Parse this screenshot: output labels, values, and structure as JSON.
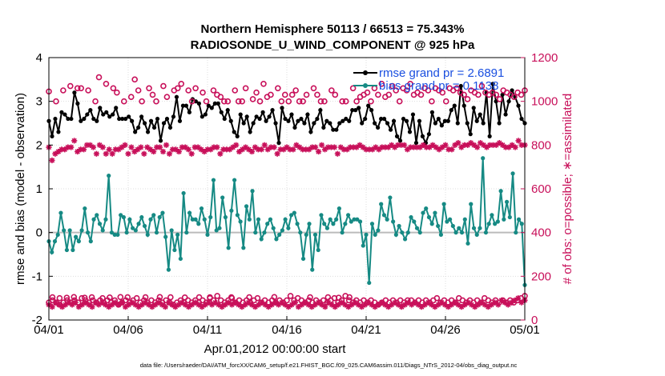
{
  "chart_data": {
    "type": "line",
    "title": "Northern Hemisphere 50113 / 66513 = 75.343%",
    "subtitle": "RADIOSONDE_U_WIND_COMPONENT @ 925 hPa",
    "xlabel": "Apr.01,2012 00:00:00 start",
    "ylabel_left": "rmse and bias (model - observation)",
    "ylabel_right": "# of obs: o=possible; ∗=assimilated",
    "x_range": [
      0,
      30
    ],
    "ylim_left": [
      -2,
      4
    ],
    "ylim_right": [
      0,
      1200
    ],
    "x_ticks": [
      {
        "x": 0,
        "label": "04/01"
      },
      {
        "x": 5,
        "label": "04/06"
      },
      {
        "x": 10,
        "label": "04/11"
      },
      {
        "x": 15,
        "label": "04/16"
      },
      {
        "x": 20,
        "label": "04/21"
      },
      {
        "x": 25,
        "label": "04/26"
      },
      {
        "x": 30,
        "label": "05/01"
      }
    ],
    "y_ticks_left": [
      "-2",
      "-1",
      "0",
      "1",
      "2",
      "3",
      "4"
    ],
    "y_ticks_right": [
      "0",
      "200",
      "400",
      "600",
      "800",
      "1000",
      "1200"
    ],
    "legend": [
      "rmse grand pr = 2.6891",
      "bias grand pr = 0.1138"
    ],
    "footnote": "data file: /Users/raeder/DAI/ATM_forcXX/CAM6_setup/f.e21.FHIST_BGC.f09_025.CAM6assim.011/Diags_NTrS_2012-04/obs_diag_output.nc",
    "x_step": 0.25,
    "series": [
      {
        "name": "rmse",
        "axis": "left",
        "color": "#000000",
        "marker": "dot",
        "values": [
          2.55,
          2.2,
          2.6,
          2.3,
          2.75,
          2.7,
          2.6,
          2.6,
          3.2,
          2.95,
          2.55,
          2.6,
          2.7,
          2.8,
          2.6,
          2.55,
          2.85,
          2.7,
          2.75,
          2.65,
          2.7,
          2.85,
          2.6,
          2.6,
          2.6,
          2.65,
          2.55,
          2.3,
          2.4,
          2.65,
          2.5,
          2.3,
          2.55,
          2.4,
          2.6,
          2.1,
          2.5,
          2.6,
          2.4,
          2.65,
          3.1,
          2.55,
          2.9,
          2.9,
          2.75,
          3.05,
          3.0,
          2.95,
          2.65,
          2.7,
          2.9,
          2.85,
          2.95,
          2.95,
          2.75,
          2.6,
          2.8,
          2.55,
          2.3,
          2.2,
          2.7,
          2.5,
          2.65,
          2.3,
          2.5,
          2.65,
          2.6,
          2.75,
          2.55,
          2.65,
          2.8,
          2.5,
          2.05,
          2.85,
          2.6,
          2.55,
          2.7,
          2.4,
          2.55,
          2.6,
          2.5,
          2.7,
          2.3,
          2.5,
          2.6,
          2.8,
          2.4,
          2.55,
          2.5,
          2.35,
          2.35,
          2.5,
          2.55,
          2.6,
          2.55,
          2.8,
          2.8,
          2.85,
          2.5,
          2.6,
          2.9,
          2.8,
          2.5,
          2.4,
          2.6,
          2.6,
          2.5,
          2.35,
          2.55,
          2.2,
          2.1,
          2.6,
          2.55,
          2.3,
          2.7,
          2.05,
          2.55,
          2.2,
          2.05,
          2.25,
          2.75,
          2.5,
          2.6,
          2.45,
          2.55,
          2.55,
          2.8,
          2.9,
          2.5,
          3.35,
          2.9,
          2.5,
          2.25,
          2.85,
          2.55,
          2.7,
          2.5,
          3.2,
          2.2,
          3.4,
          3.0,
          2.5,
          3.15,
          2.7,
          3.0,
          3.25,
          3.1,
          2.9,
          2.6,
          2.5
        ]
      },
      {
        "name": "bias",
        "axis": "left",
        "color": "#168a84",
        "marker": "dot",
        "values": [
          -0.2,
          -0.45,
          -0.2,
          -0.05,
          0.45,
          0.05,
          -0.4,
          0.05,
          -0.4,
          -0.1,
          -0.2,
          0.05,
          0.55,
          0.0,
          -0.2,
          0.3,
          0.4,
          0.2,
          0.05,
          0.3,
          1.3,
          0.0,
          -0.05,
          -0.05,
          0.4,
          0.35,
          0.0,
          0.3,
          0.1,
          0.05,
          0.2,
          0.35,
          0.15,
          -0.05,
          0.3,
          0.4,
          0.0,
          0.35,
          0.45,
          -0.1,
          -0.85,
          0.05,
          -0.4,
          -0.05,
          -0.6,
          0.9,
          0.0,
          0.45,
          0.3,
          0.3,
          0.2,
          0.55,
          0.3,
          -0.05,
          0.35,
          1.2,
          0.05,
          0.1,
          0.8,
          0.35,
          -0.35,
          0.5,
          1.2,
          0.4,
          0.25,
          -0.35,
          0.6,
          0.3,
          0.95,
          0.0,
          0.3,
          -0.15,
          0.0,
          0.2,
          0.3,
          0.1,
          -0.15,
          -0.05,
          0.05,
          0.3,
          0.1,
          0.4,
          0.45,
          0.2,
          0.0,
          -0.6,
          -0.05,
          0.2,
          -0.85,
          -0.05,
          -0.4,
          0.4,
          0.2,
          0.1,
          0.3,
          0.2,
          0.3,
          0.55,
          0.0,
          0.2,
          0.4,
          0.25,
          0.3,
          0.3,
          0.25,
          -0.3,
          -0.05,
          -1.15,
          0.2,
          -0.05,
          0.05,
          0.65,
          0.4,
          0.3,
          0.8,
          0.25,
          -0.05,
          0.15,
          0.0,
          -0.15,
          0.0,
          0.35,
          0.25,
          0.1,
          0.0,
          0.45,
          0.55,
          0.35,
          0.2,
          0.45,
          0.15,
          -0.05,
          0.65,
          0.25,
          0.3,
          0.15,
          0.0,
          0.1,
          0.0,
          0.3,
          -0.25,
          0.65,
          0.1,
          -0.05,
          0.1,
          1.7,
          0.0,
          0.2,
          0.4,
          0.2,
          0.25,
          0.95,
          0.3,
          0.7,
          0.35,
          1.35,
          0.0,
          0.3,
          0.2,
          -1.2
        ]
      },
      {
        "name": "obs possible",
        "axis": "right",
        "color": "#c8105a",
        "marker": "circle",
        "values": [
          1045,
          104,
          1000,
          100,
          1050,
          102,
          1070,
          105,
          1060,
          1060,
          102,
          1050,
          104,
          1000,
          1110,
          100,
          1080,
          103,
          1060,
          1040,
          105,
          1000,
          104,
          1020,
          1100,
          1050,
          1000,
          104,
          1060,
          1030,
          1000,
          105,
          1070,
          1020,
          104,
          1050,
          1060,
          1080,
          103,
          1050,
          1000,
          1060,
          104,
          1040,
          1000,
          104,
          1050,
          1030,
          1020,
          1000,
          1000,
          104,
          1050,
          1000,
          1000,
          1060,
          104,
          1010,
          1040,
          1000,
          1080,
          1020,
          1030,
          105,
          1060,
          1000,
          1030,
          1000,
          1030,
          1050,
          1000,
          1000,
          1030,
          104,
          1060,
          1030,
          1000,
          1000,
          104,
          1050,
          1030,
          102,
          1000,
          1000,
          104,
          1060,
          1000,
          1020,
          1030,
          1040,
          1000,
          1060,
          1030,
          1080,
          1020,
          1030,
          1070,
          1050,
          1000,
          1060,
          1050,
          1080,
          1030,
          1040,
          1030,
          1060,
          1050,
          1000,
          1060,
          1050,
          1040,
          1000,
          1060,
          1050,
          1060,
          1040,
          1030,
          1010,
          1050,
          1040,
          1030,
          1070,
          1040,
          1030,
          1040,
          1030,
          1010,
          1050,
          1040,
          1030,
          1020,
          1040,
          1030,
          1050
        ]
      },
      {
        "name": "obs assimilated",
        "axis": "right",
        "color": "#c8105a",
        "marker": "star",
        "values": [
          790,
          730,
          760,
          770,
          780,
          780,
          790,
          790,
          820,
          770,
          780,
          780,
          800,
          800,
          790,
          760,
          800,
          790,
          760,
          780,
          760,
          780,
          780,
          790,
          800,
          760,
          790,
          770,
          780,
          790,
          760,
          790,
          780,
          770,
          790,
          790,
          770,
          800,
          760,
          780,
          780,
          770,
          790,
          790,
          780,
          760,
          790,
          790,
          780,
          770,
          780,
          780,
          790,
          790,
          760,
          780,
          780,
          780,
          790,
          800,
          770,
          780,
          790,
          780,
          770,
          790,
          780,
          780,
          800,
          780,
          790,
          790,
          760,
          780,
          780,
          790,
          780,
          780,
          800,
          790,
          780,
          780,
          780,
          790,
          790,
          770,
          800,
          780,
          790,
          790,
          790,
          760,
          790,
          780,
          780,
          790,
          790,
          790,
          800,
          790,
          780,
          780,
          780,
          790,
          780,
          790,
          790,
          790,
          800,
          790,
          800,
          800,
          800,
          780,
          790,
          790,
          790,
          790,
          800,
          790,
          790,
          800,
          790,
          780,
          790,
          800,
          780,
          780,
          800,
          810,
          790,
          800,
          800,
          810,
          800,
          790,
          810,
          800,
          790,
          800,
          800,
          800,
          810,
          800,
          790,
          790,
          800,
          790,
          820,
          800,
          800
        ]
      },
      {
        "name": "obs possible (low)",
        "axis": "right",
        "color": "#c8105a",
        "marker": "circle",
        "values": [
          80,
          90,
          80,
          70,
          80,
          90,
          80,
          90,
          80,
          100,
          90,
          80,
          90,
          80,
          90,
          80,
          90,
          80,
          90,
          70,
          80,
          90,
          80,
          90,
          100,
          80,
          90,
          80,
          90,
          80,
          90,
          80,
          90,
          80,
          70,
          80,
          90,
          80,
          90,
          80,
          90,
          80,
          90,
          80,
          100,
          90,
          110,
          90,
          80,
          90,
          100,
          80,
          90,
          80,
          90,
          80,
          90,
          100,
          80,
          90,
          80,
          90,
          80,
          90,
          80,
          90,
          110,
          90,
          100,
          90,
          80,
          90,
          80,
          90,
          80,
          90,
          80,
          90,
          100,
          80,
          90,
          110,
          90,
          80,
          90,
          80,
          90,
          80,
          90,
          80,
          70,
          80,
          90,
          80,
          90,
          80,
          90,
          80,
          90,
          90,
          80,
          90,
          80,
          90,
          80,
          90,
          100,
          80,
          90,
          80,
          90,
          80,
          100,
          90,
          80,
          90,
          80,
          90,
          80,
          100,
          90,
          80,
          90,
          80,
          90,
          80,
          90,
          80,
          90,
          100,
          110
        ]
      },
      {
        "name": "obs assimilated (low)",
        "axis": "right",
        "color": "#c8105a",
        "marker": "star",
        "values": [
          70,
          60,
          80,
          70,
          60,
          70,
          80,
          70,
          80,
          60,
          70,
          80,
          70,
          60,
          80,
          70,
          80,
          70,
          60,
          70,
          80,
          70,
          80,
          60,
          70,
          80,
          70,
          60,
          70,
          80,
          70,
          60,
          70,
          80,
          70,
          60,
          80,
          70,
          60,
          70,
          80,
          70,
          60,
          70,
          80,
          70,
          60,
          70,
          80,
          70,
          80,
          70,
          60,
          70,
          80,
          70,
          80,
          70,
          60,
          70,
          80,
          70,
          60,
          70,
          80,
          70,
          60,
          70,
          80,
          70,
          80,
          70,
          60,
          70,
          80,
          60,
          70,
          80,
          70,
          60,
          70,
          80,
          70,
          60,
          80,
          70,
          60,
          70,
          80,
          70,
          60,
          70,
          80,
          70,
          60,
          70,
          80,
          70,
          60,
          70,
          80,
          70,
          60,
          70,
          80,
          70,
          60,
          70,
          80,
          70,
          80,
          70,
          60,
          70,
          80,
          70,
          60,
          70,
          80,
          70,
          60,
          70,
          80,
          70,
          60,
          70,
          80,
          70,
          60,
          70,
          80,
          70,
          60,
          70,
          80,
          70,
          90,
          80,
          70,
          80,
          90,
          100,
          80,
          90
        ]
      }
    ]
  }
}
